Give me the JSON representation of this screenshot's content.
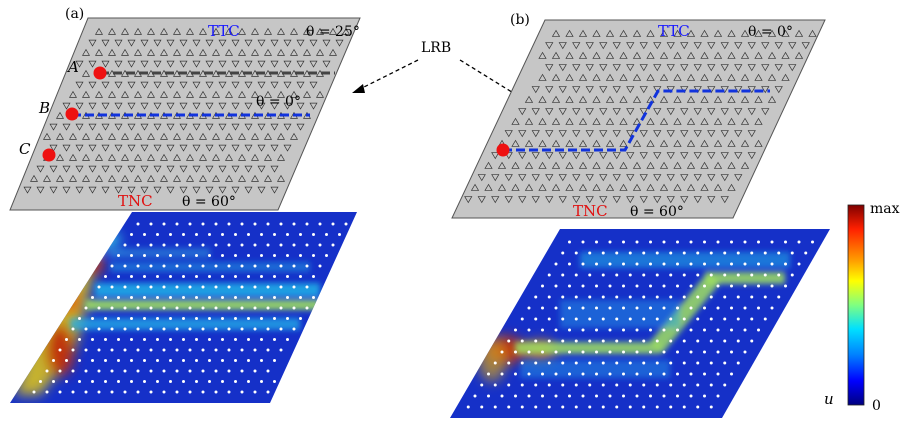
{
  "panels": {
    "a": {
      "label": "(a)",
      "ttc": "TTC",
      "tnc": "TNC",
      "theta_top": "θ = 25°",
      "theta_mid": "θ = 0°",
      "theta_bottom": "θ = 60°",
      "point_a": "A",
      "point_b": "B",
      "point_c": "C"
    },
    "b": {
      "label": "(b)",
      "ttc": "TTC",
      "tnc": "TNC",
      "theta_top": "θ = 0°",
      "theta_bottom": "θ = 60°"
    }
  },
  "lrb_label": "LRB",
  "colorbar": {
    "max_label": "max",
    "min_label": "0",
    "quantity_label": "u",
    "colors": [
      "#7f0000",
      "#ff2000",
      "#ffa000",
      "#ffff00",
      "#80ff80",
      "#00e0ff",
      "#0080ff",
      "#0000ff",
      "#00007f"
    ]
  },
  "colors": {
    "ttc_text": "#1a1aff",
    "tnc_text": "#e01010",
    "source_dot": "#ee1111",
    "interface_blue": "#1133dd",
    "interface_gray": "#444444",
    "plate_fill": "#c6c6c6",
    "field_background": "#1530c8"
  }
}
